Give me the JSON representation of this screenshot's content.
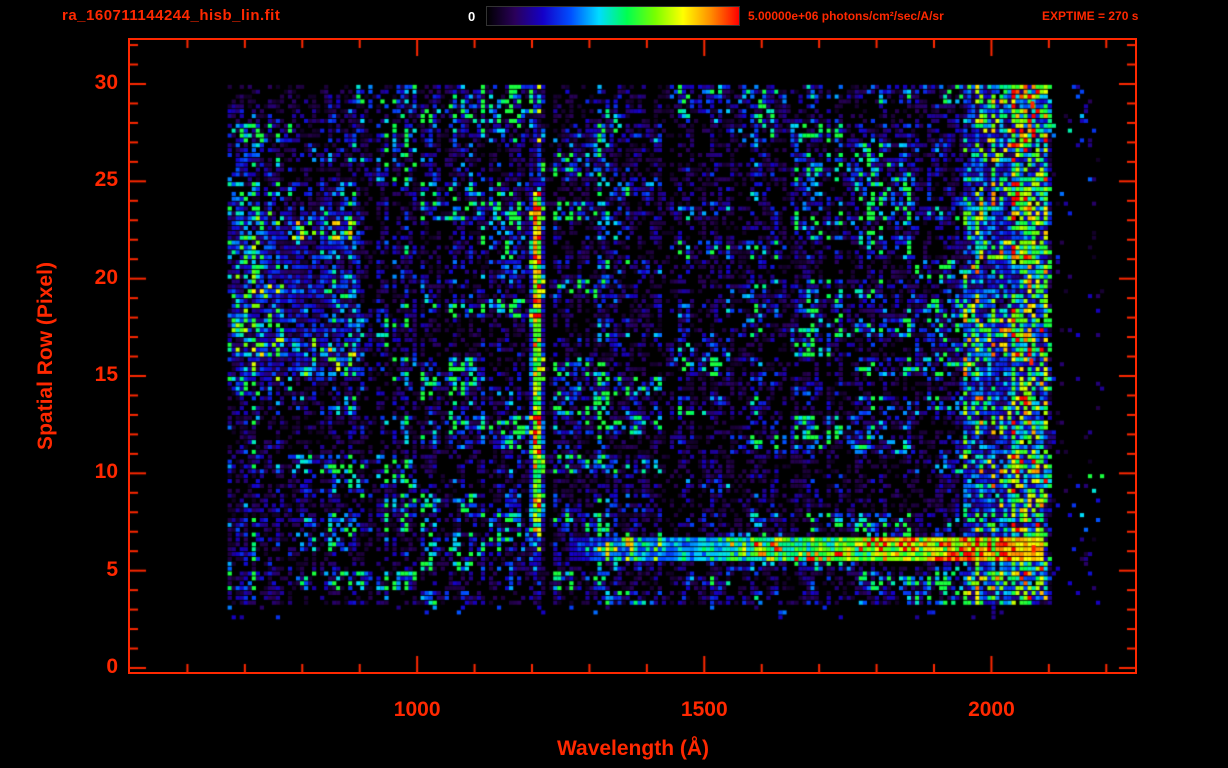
{
  "colors": {
    "background": "#000000",
    "accent": "#ff2800",
    "colorbar_min_label_color": "#ffffff",
    "colormap_stops": [
      "#000000",
      "#2a005a",
      "#1400c8",
      "#0050ff",
      "#00dcff",
      "#00ff50",
      "#78ff00",
      "#ffff00",
      "#ff8c00",
      "#ff0000"
    ]
  },
  "header": {
    "title": "ra_160711144244_hisb_lin.fit",
    "colorbar": {
      "min_label": "0",
      "max_label": "5.00000e+06 photons/cm²/sec/A/sr"
    },
    "exptime": "EXPTIME = 270 s"
  },
  "chart_data": {
    "type": "heatmap",
    "title": "ra_160711144244_hisb_lin.fit",
    "xlabel": "Wavelength (Å)",
    "ylabel": "Spatial Row (Pixel)",
    "xlim": [
      500,
      2250
    ],
    "ylim": [
      0,
      32
    ],
    "x_ticks": [
      1000,
      1500,
      2000
    ],
    "x_minor_tick_step": 100,
    "y_ticks": [
      0,
      5,
      10,
      15,
      20,
      25,
      30
    ],
    "y_minor_tick_step": 1,
    "colorbar_range": [
      0,
      5000000
    ],
    "colorbar_units": "photons/cm²/sec/A/sr",
    "exptime_seconds": 270,
    "data_extent": {
      "x": [
        670,
        2190
      ],
      "y": [
        2.5,
        30
      ]
    },
    "features": [
      {
        "name": "lyman-alpha-emission-line",
        "type": "vertical-stripe",
        "x": 1205,
        "width": 30,
        "y_range": [
          6.8,
          24.3
        ],
        "intensity": 0.55
      },
      {
        "name": "continuum-streak",
        "type": "horizontal-stripe",
        "y": 6.0,
        "half_height": 0.65,
        "x_range": [
          1260,
          2085
        ],
        "intensity": 0.8
      },
      {
        "name": "right-edge-band",
        "type": "vertical-band",
        "x_range": [
          1950,
          2095
        ],
        "intensity": 0.45
      },
      {
        "name": "left-blue-patch",
        "type": "region",
        "x_range": [
          670,
          900
        ],
        "y_range": [
          14.5,
          23.5
        ],
        "intensity": 0.3
      },
      {
        "name": "hot-pixels",
        "type": "points",
        "points": [
          [
            2070,
            6.0
          ],
          [
            2068,
            28.8
          ],
          [
            2066,
            15.6
          ]
        ]
      },
      {
        "name": "background-noise",
        "type": "noise",
        "intensity": 0.35
      }
    ]
  }
}
